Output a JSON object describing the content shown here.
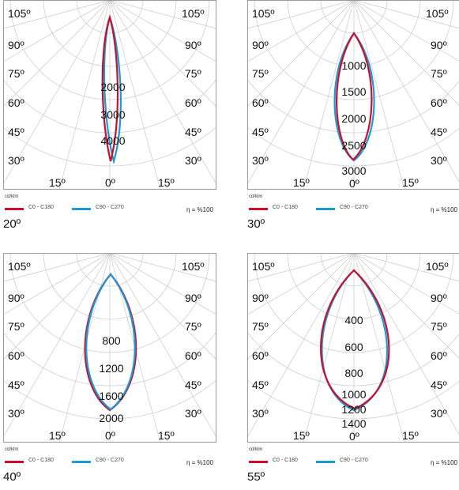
{
  "panels": [
    {
      "caption": "20º",
      "angle_labels": [
        "105º",
        "90º",
        "75º",
        "60º",
        "45º",
        "30º",
        "15º",
        "0º"
      ],
      "radial_labels": [
        "2000",
        "3000",
        "4000"
      ],
      "unit": "cd/klm",
      "legend": [
        "C0 - C180",
        "C90 - C270"
      ],
      "efficiency": "η = %100",
      "series_colors": {
        "c0": "#c8102e",
        "c90": "#1a9ad6"
      }
    },
    {
      "caption": "30º",
      "angle_labels": [
        "105º",
        "90º",
        "75º",
        "60º",
        "45º",
        "30º",
        "15º",
        "0º"
      ],
      "radial_labels": [
        "1000",
        "1500",
        "2000",
        "2500",
        "3000"
      ],
      "unit": "cd/klm",
      "legend": [
        "C0 - C180",
        "C90 - C270"
      ],
      "efficiency": "η = %100",
      "series_colors": {
        "c0": "#c8102e",
        "c90": "#1a9ad6"
      }
    },
    {
      "caption": "40º",
      "angle_labels": [
        "105º",
        "90º",
        "75º",
        "60º",
        "45º",
        "30º",
        "15º",
        "0º"
      ],
      "radial_labels": [
        "800",
        "1200",
        "1600",
        "2000"
      ],
      "unit": "cd/klm",
      "legend": [
        "C0 - C180",
        "C90 - C270"
      ],
      "efficiency": "η = %100",
      "series_colors": {
        "c0": "#c8102e",
        "c90": "#1a9ad6"
      }
    },
    {
      "caption": "55º",
      "angle_labels": [
        "105º",
        "90º",
        "75º",
        "60º",
        "45º",
        "30º",
        "15º",
        "0º"
      ],
      "radial_labels": [
        "400",
        "600",
        "800",
        "1000",
        "1200",
        "1400"
      ],
      "unit": "cd/klm",
      "legend": [
        "C0 - C180",
        "C90 - C270"
      ],
      "efficiency": "η = %100",
      "series_colors": {
        "c0": "#c8102e",
        "c90": "#1a9ad6"
      }
    }
  ]
}
